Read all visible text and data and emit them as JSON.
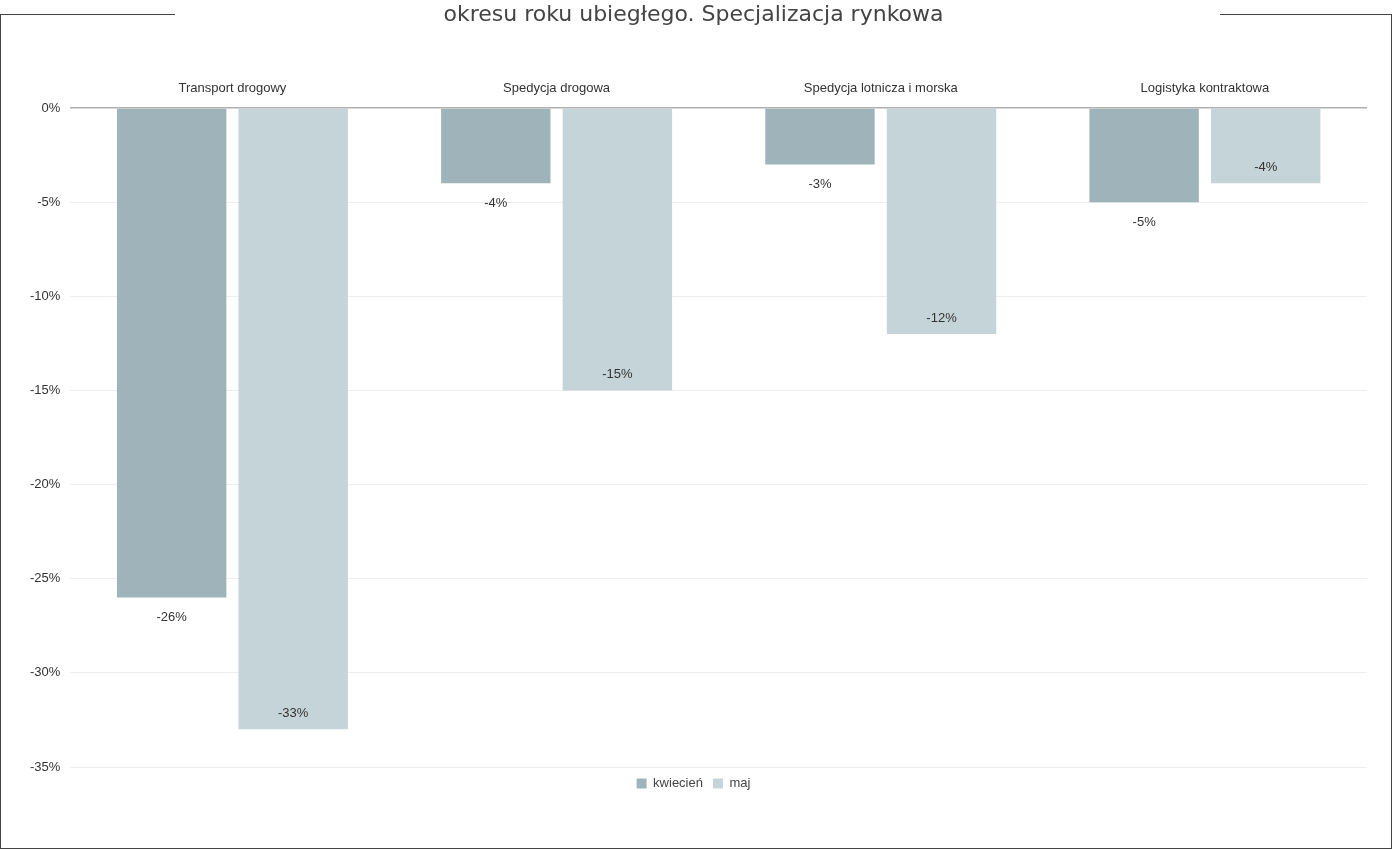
{
  "chart_data": {
    "type": "bar",
    "title": "okresu roku ubiegłego. Specjalizacja rynkowa",
    "categories": [
      "Transport drogowy",
      "Spedycja drogowa",
      "Spedycja lotnicza i morska",
      "Logistyka kontraktowa"
    ],
    "series": [
      {
        "name": "kwiecień",
        "color": "#9fb4ba",
        "values": [
          -26,
          -4,
          -3,
          -5
        ],
        "value_labels": [
          "-26%",
          "-4%",
          "-3%",
          "-5%"
        ]
      },
      {
        "name": "maj",
        "color": "#c5d4d8",
        "values": [
          -33,
          -15,
          -12,
          -4
        ],
        "value_labels": [
          "-33%",
          "-15%",
          "-12%",
          "-4%"
        ]
      }
    ],
    "ylim": [
      -35,
      0
    ],
    "yticks": [
      {
        "value": 0,
        "label": "0%"
      },
      {
        "value": -5,
        "label": "-5%"
      },
      {
        "value": -10,
        "label": "-10%"
      },
      {
        "value": -15,
        "label": "-15%"
      },
      {
        "value": -20,
        "label": "-20%"
      },
      {
        "value": -25,
        "label": "-25%"
      },
      {
        "value": -30,
        "label": "-30%"
      },
      {
        "value": -35,
        "label": "-35%"
      }
    ],
    "grid": "y",
    "legend": "bottom"
  }
}
